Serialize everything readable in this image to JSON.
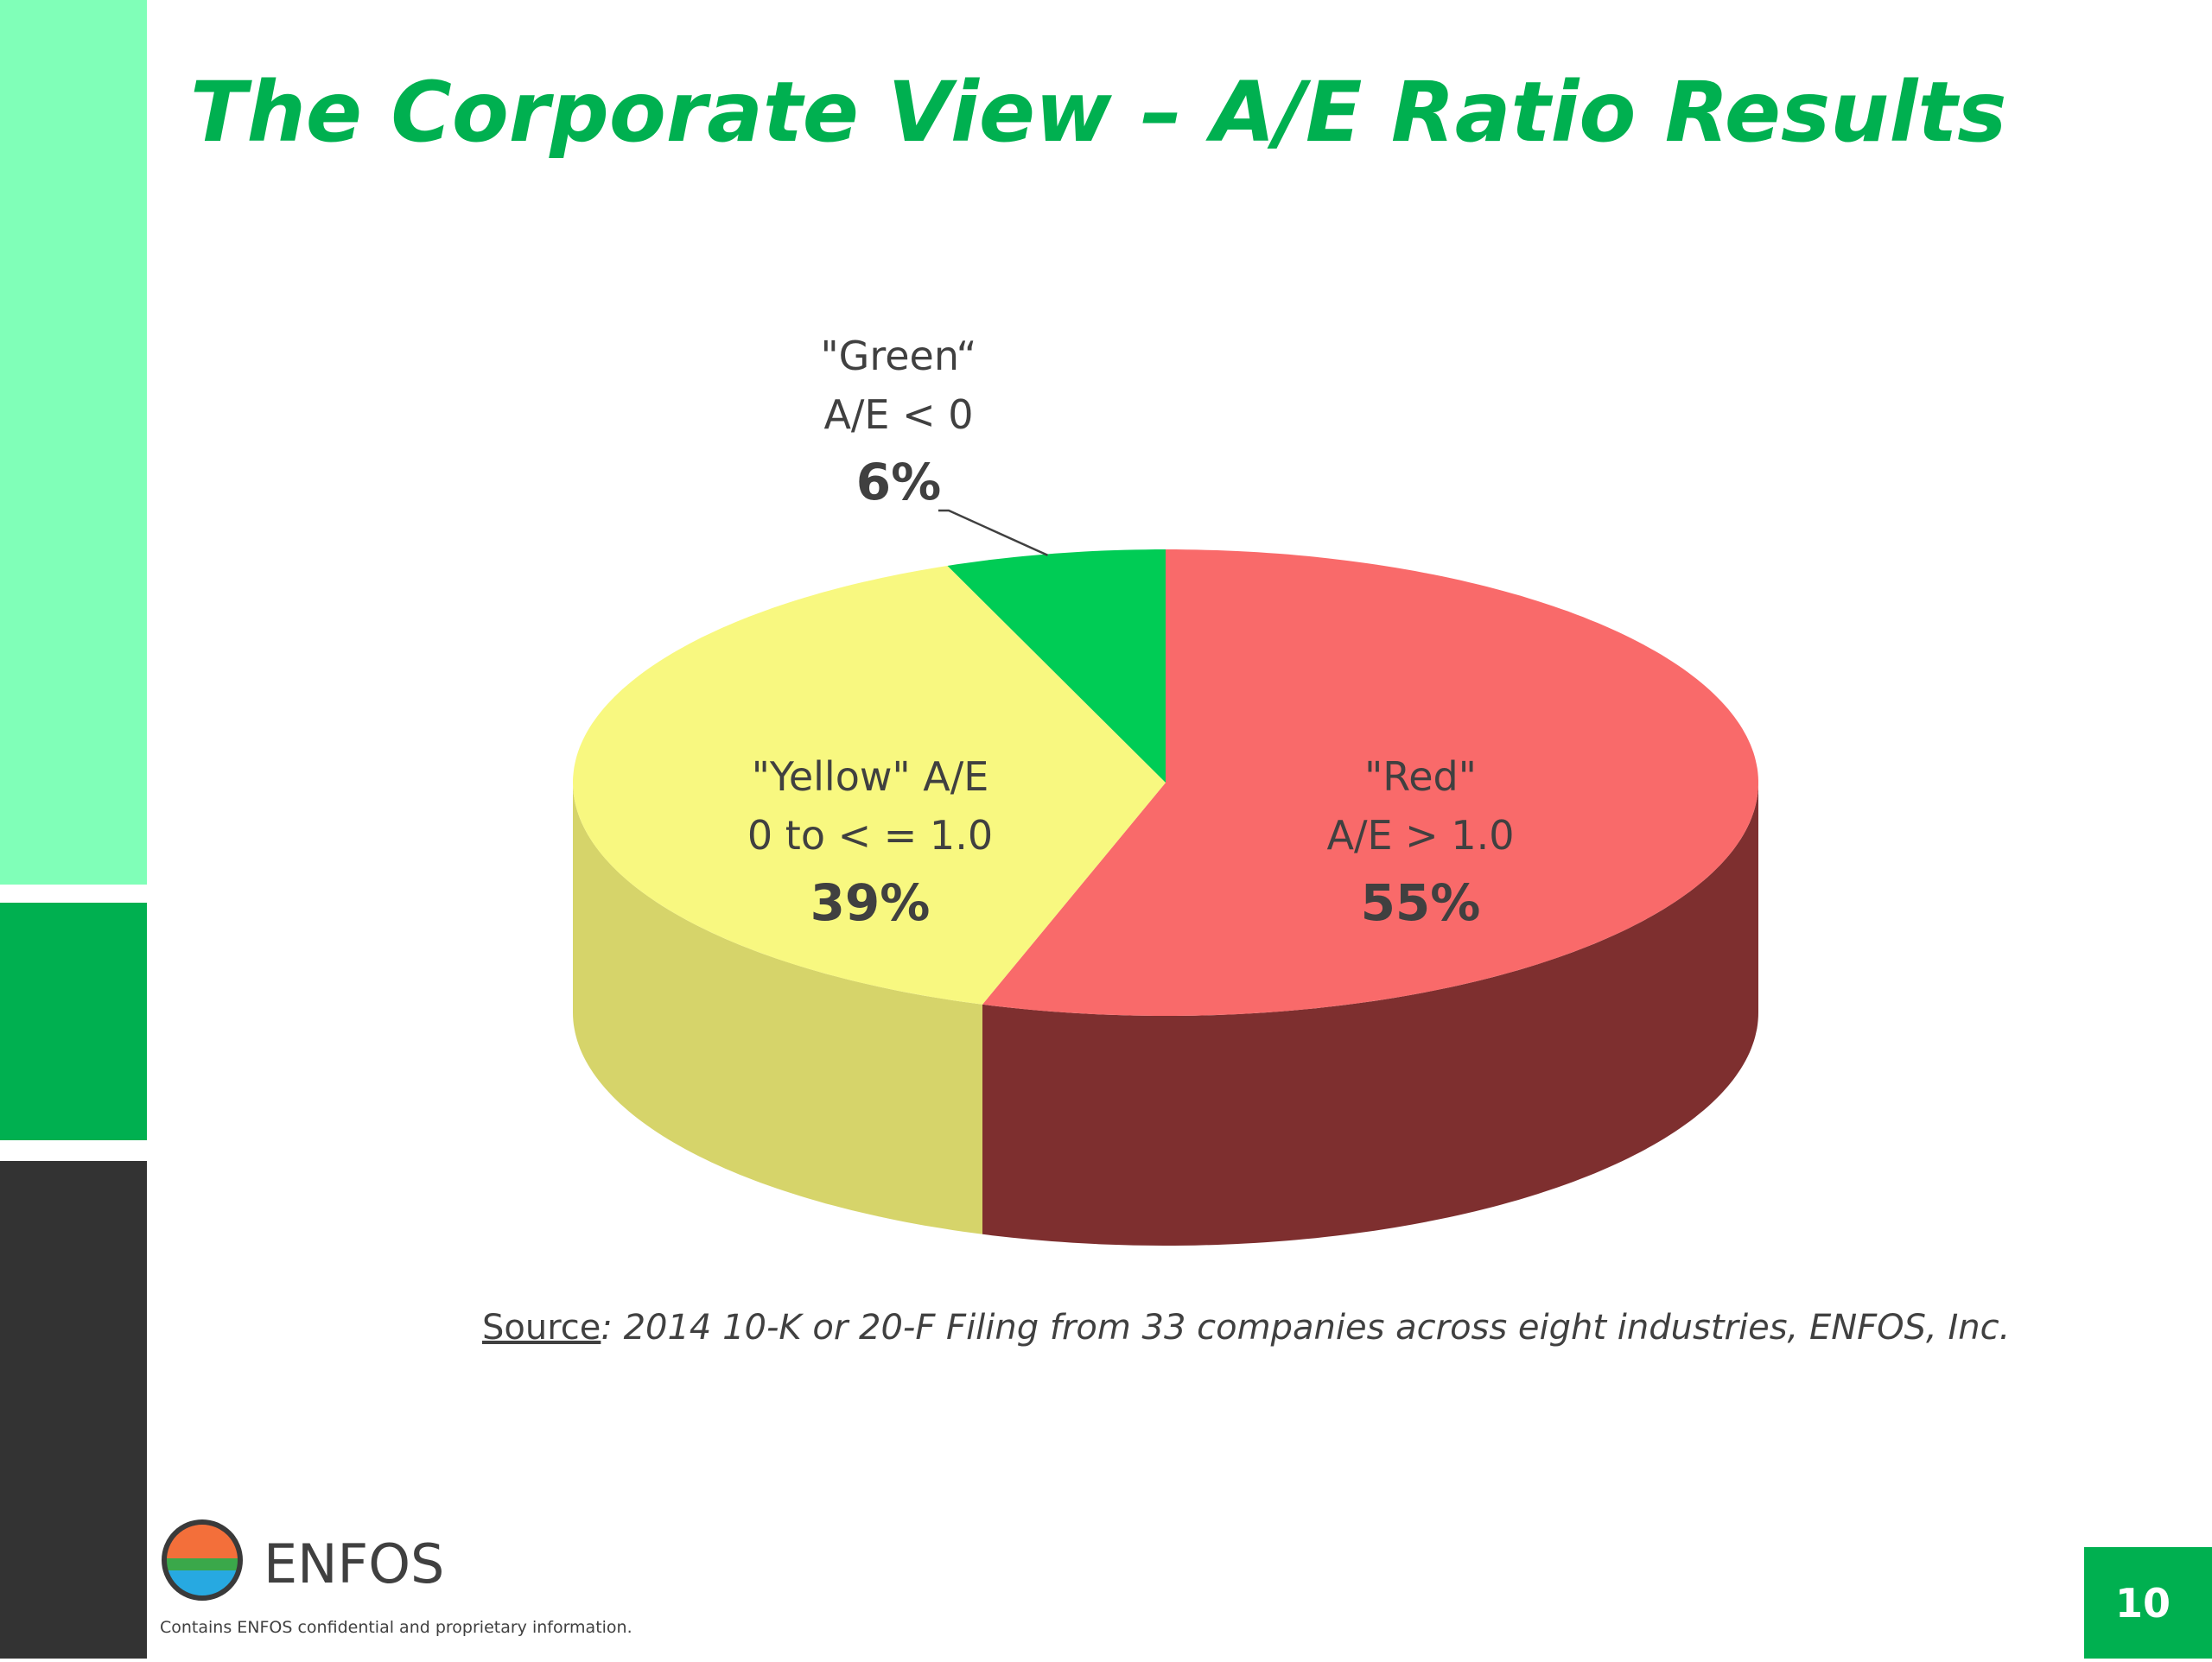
{
  "title": "The Corporate View – A/E Ratio Results",
  "chart_data": {
    "type": "pie",
    "categories": [
      "\"Red\"\nA/E > 1.0",
      "\"Yellow\" A/E\n0 to < = 1.0",
      "\"Green“\nA/E < 0"
    ],
    "values": [
      55,
      39,
      6
    ],
    "value_labels": [
      "55%",
      "39%",
      "6%"
    ],
    "colors": [
      "#f96a6a",
      "#f8f880",
      "#00cc55"
    ],
    "side_colors": [
      "#7e2f2f",
      "#d6d46a",
      "#00a044"
    ]
  },
  "source_label": "Source",
  "source_text": ":  2014 10-K or 20-F Filing from 33 companies across eight industries, ENFOS, Inc.",
  "footer": {
    "brand": "ENFOS",
    "notice": "Contains ENFOS confidential and proprietary information.",
    "page_number": 10
  }
}
